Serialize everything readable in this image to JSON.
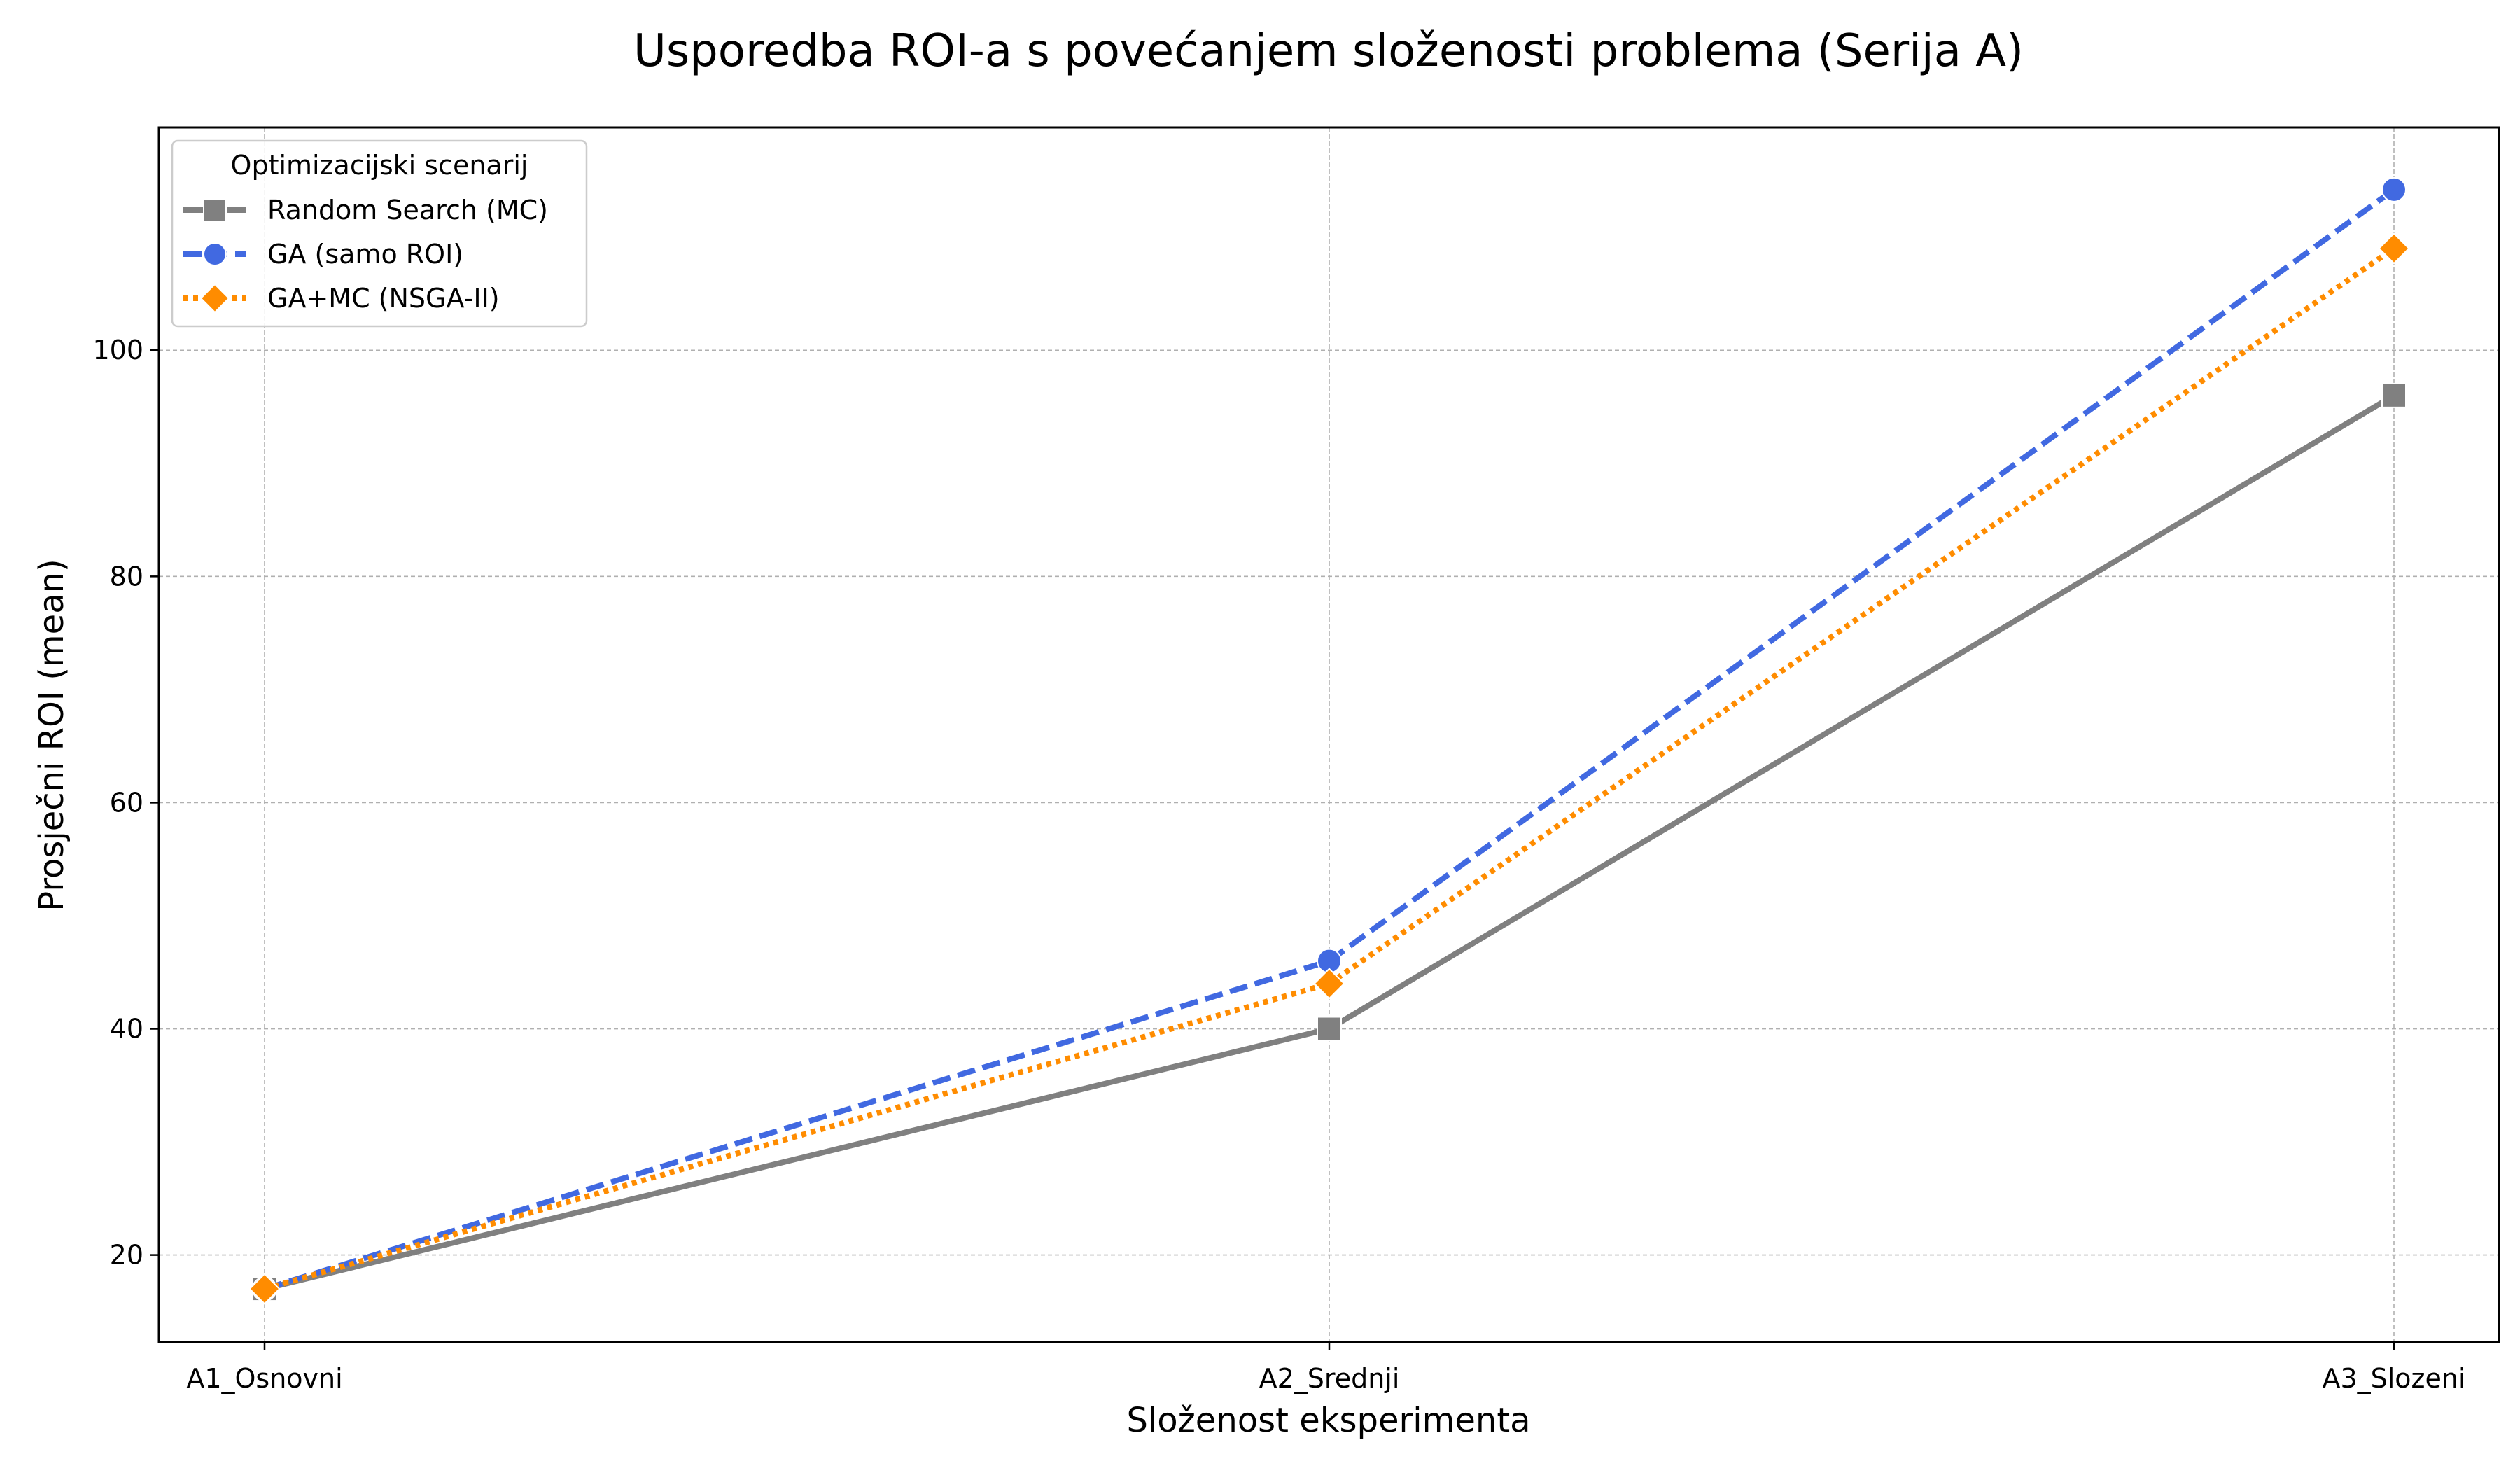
{
  "chart_data": {
    "type": "line",
    "title": "Usporedba ROI-a s povećanjem složenosti problema (Serija A)",
    "xlabel": "Složenost eksperimenta",
    "ylabel": "Prosječni ROI (mean)",
    "categories": [
      "A1_Osnovni",
      "A2_Srednji",
      "A3_Slozeni"
    ],
    "ylim": [
      12.3,
      119.7
    ],
    "yticks": [
      20,
      40,
      60,
      80,
      100
    ],
    "grid": true,
    "legend": {
      "title": "Optimizacijski scenarij",
      "placement": "top-left"
    },
    "series": [
      {
        "name": "Random Search (MC)",
        "values": [
          17.0,
          40.0,
          96.0
        ],
        "color": "#808080",
        "dash": "solid",
        "marker": "square"
      },
      {
        "name": "GA (samo ROI)",
        "values": [
          17.0,
          46.0,
          114.2
        ],
        "color": "#4169E1",
        "dash": "dashed",
        "marker": "circle"
      },
      {
        "name": "GA+MC (NSGA-II)",
        "values": [
          17.0,
          44.0,
          109.0
        ],
        "color": "#FF8C00",
        "dash": "dotted",
        "marker": "diamond"
      }
    ]
  }
}
